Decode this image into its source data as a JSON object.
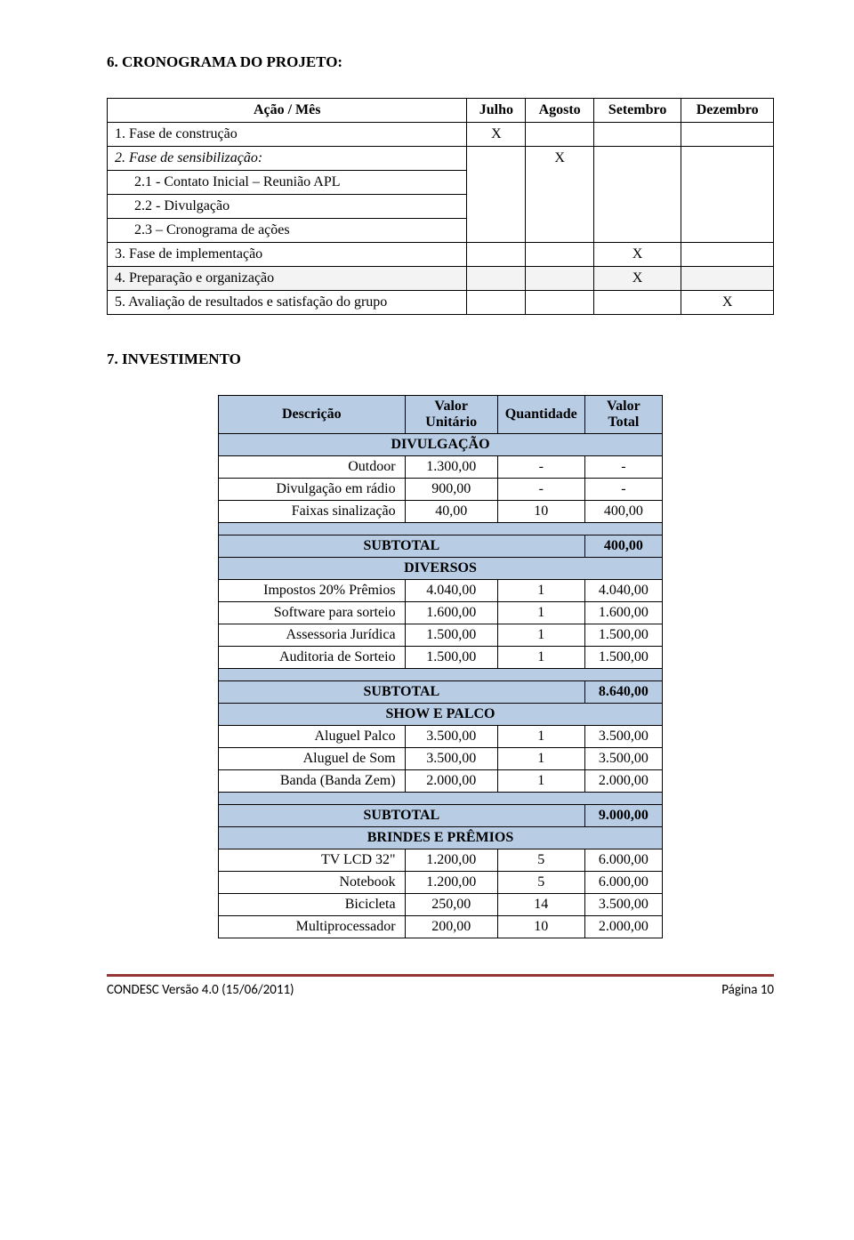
{
  "section6": {
    "title": "6.   CRONOGRAMA DO PROJETO:",
    "columns": [
      "Ação / Mês",
      "Julho",
      "Agosto",
      "Setembro",
      "Dezembro"
    ],
    "rows": [
      {
        "label": "1.  Fase de construção",
        "marks": [
          "X",
          "",
          "",
          ""
        ],
        "italic": false,
        "indent": false
      },
      {
        "label": "2.  Fase de sensibilização:",
        "marks": [
          "",
          "X",
          "",
          ""
        ],
        "italic": true,
        "indent": false
      },
      {
        "label": "2.1 - Contato Inicial – Reunião APL",
        "marks": null,
        "italic": false,
        "indent": true
      },
      {
        "label": "2.2 - Divulgação",
        "marks": null,
        "italic": false,
        "indent": true
      },
      {
        "label": "2.3 – Cronograma de ações",
        "marks": null,
        "italic": false,
        "indent": true
      },
      {
        "label": "3.  Fase de implementação",
        "marks": [
          "",
          "",
          "X",
          ""
        ],
        "italic": false,
        "indent": false
      },
      {
        "label": "4.  Preparação e organização",
        "marks": [
          "",
          "",
          "X",
          ""
        ],
        "italic": false,
        "indent": false,
        "highlight": true
      },
      {
        "label": "5.  Avaliação de resultados e satisfação do grupo",
        "marks": [
          "",
          "",
          "",
          "X"
        ],
        "italic": false,
        "indent": false
      }
    ]
  },
  "section7": {
    "title": "7.   INVESTIMENTO",
    "columns": [
      "Descrição",
      "Valor Unitário",
      "Quantidade",
      "Valor Total"
    ],
    "groups": [
      {
        "header": "DIVULGAÇÃO",
        "rows": [
          {
            "desc": "Outdoor",
            "unit": "1.300,00",
            "qty": "-",
            "total": "-"
          },
          {
            "desc": "Divulgação em rádio",
            "unit": "900,00",
            "qty": "-",
            "total": "-"
          },
          {
            "desc": "Faixas sinalização",
            "unit": "40,00",
            "qty": "10",
            "total": "400,00"
          }
        ],
        "subtotal_label": "SUBTOTAL",
        "subtotal_value": "400,00"
      },
      {
        "header": "DIVERSOS",
        "rows": [
          {
            "desc": "Impostos 20%  Prêmios",
            "unit": "4.040,00",
            "qty": "1",
            "total": "4.040,00"
          },
          {
            "desc": "Software para sorteio",
            "unit": "1.600,00",
            "qty": "1",
            "total": "1.600,00"
          },
          {
            "desc": "Assessoria Jurídica",
            "unit": "1.500,00",
            "qty": "1",
            "total": "1.500,00"
          },
          {
            "desc": "Auditoria de Sorteio",
            "unit": "1.500,00",
            "qty": "1",
            "total": "1.500,00"
          }
        ],
        "subtotal_label": "SUBTOTAL",
        "subtotal_value": "8.640,00"
      },
      {
        "header": "SHOW E PALCO",
        "rows": [
          {
            "desc": "Aluguel Palco",
            "unit": "3.500,00",
            "qty": "1",
            "total": "3.500,00"
          },
          {
            "desc": "Aluguel de Som",
            "unit": "3.500,00",
            "qty": "1",
            "total": "3.500,00"
          },
          {
            "desc": "Banda (Banda Zem)",
            "unit": "2.000,00",
            "qty": "1",
            "total": "2.000,00"
          }
        ],
        "subtotal_label": "SUBTOTAL",
        "subtotal_value": "9.000,00"
      },
      {
        "header": "BRINDES E PRÊMIOS",
        "rows": [
          {
            "desc": "TV LCD 32\"",
            "unit": "1.200,00",
            "qty": "5",
            "total": "6.000,00"
          },
          {
            "desc": "Notebook",
            "unit": "1.200,00",
            "qty": "5",
            "total": "6.000,00"
          },
          {
            "desc": "Bicicleta",
            "unit": "250,00",
            "qty": "14",
            "total": "3.500,00"
          },
          {
            "desc": "Multiprocessador",
            "unit": "200,00",
            "qty": "10",
            "total": "2.000,00"
          }
        ]
      }
    ]
  },
  "footer": {
    "left": "CONDESC   Versão 4.0 (15/06/2011)",
    "right": "Página 10"
  },
  "colors": {
    "table_header_bg": "#b8cce4",
    "row_highlight_bg": "#f3f3f3",
    "footer_rule": "#943634"
  }
}
